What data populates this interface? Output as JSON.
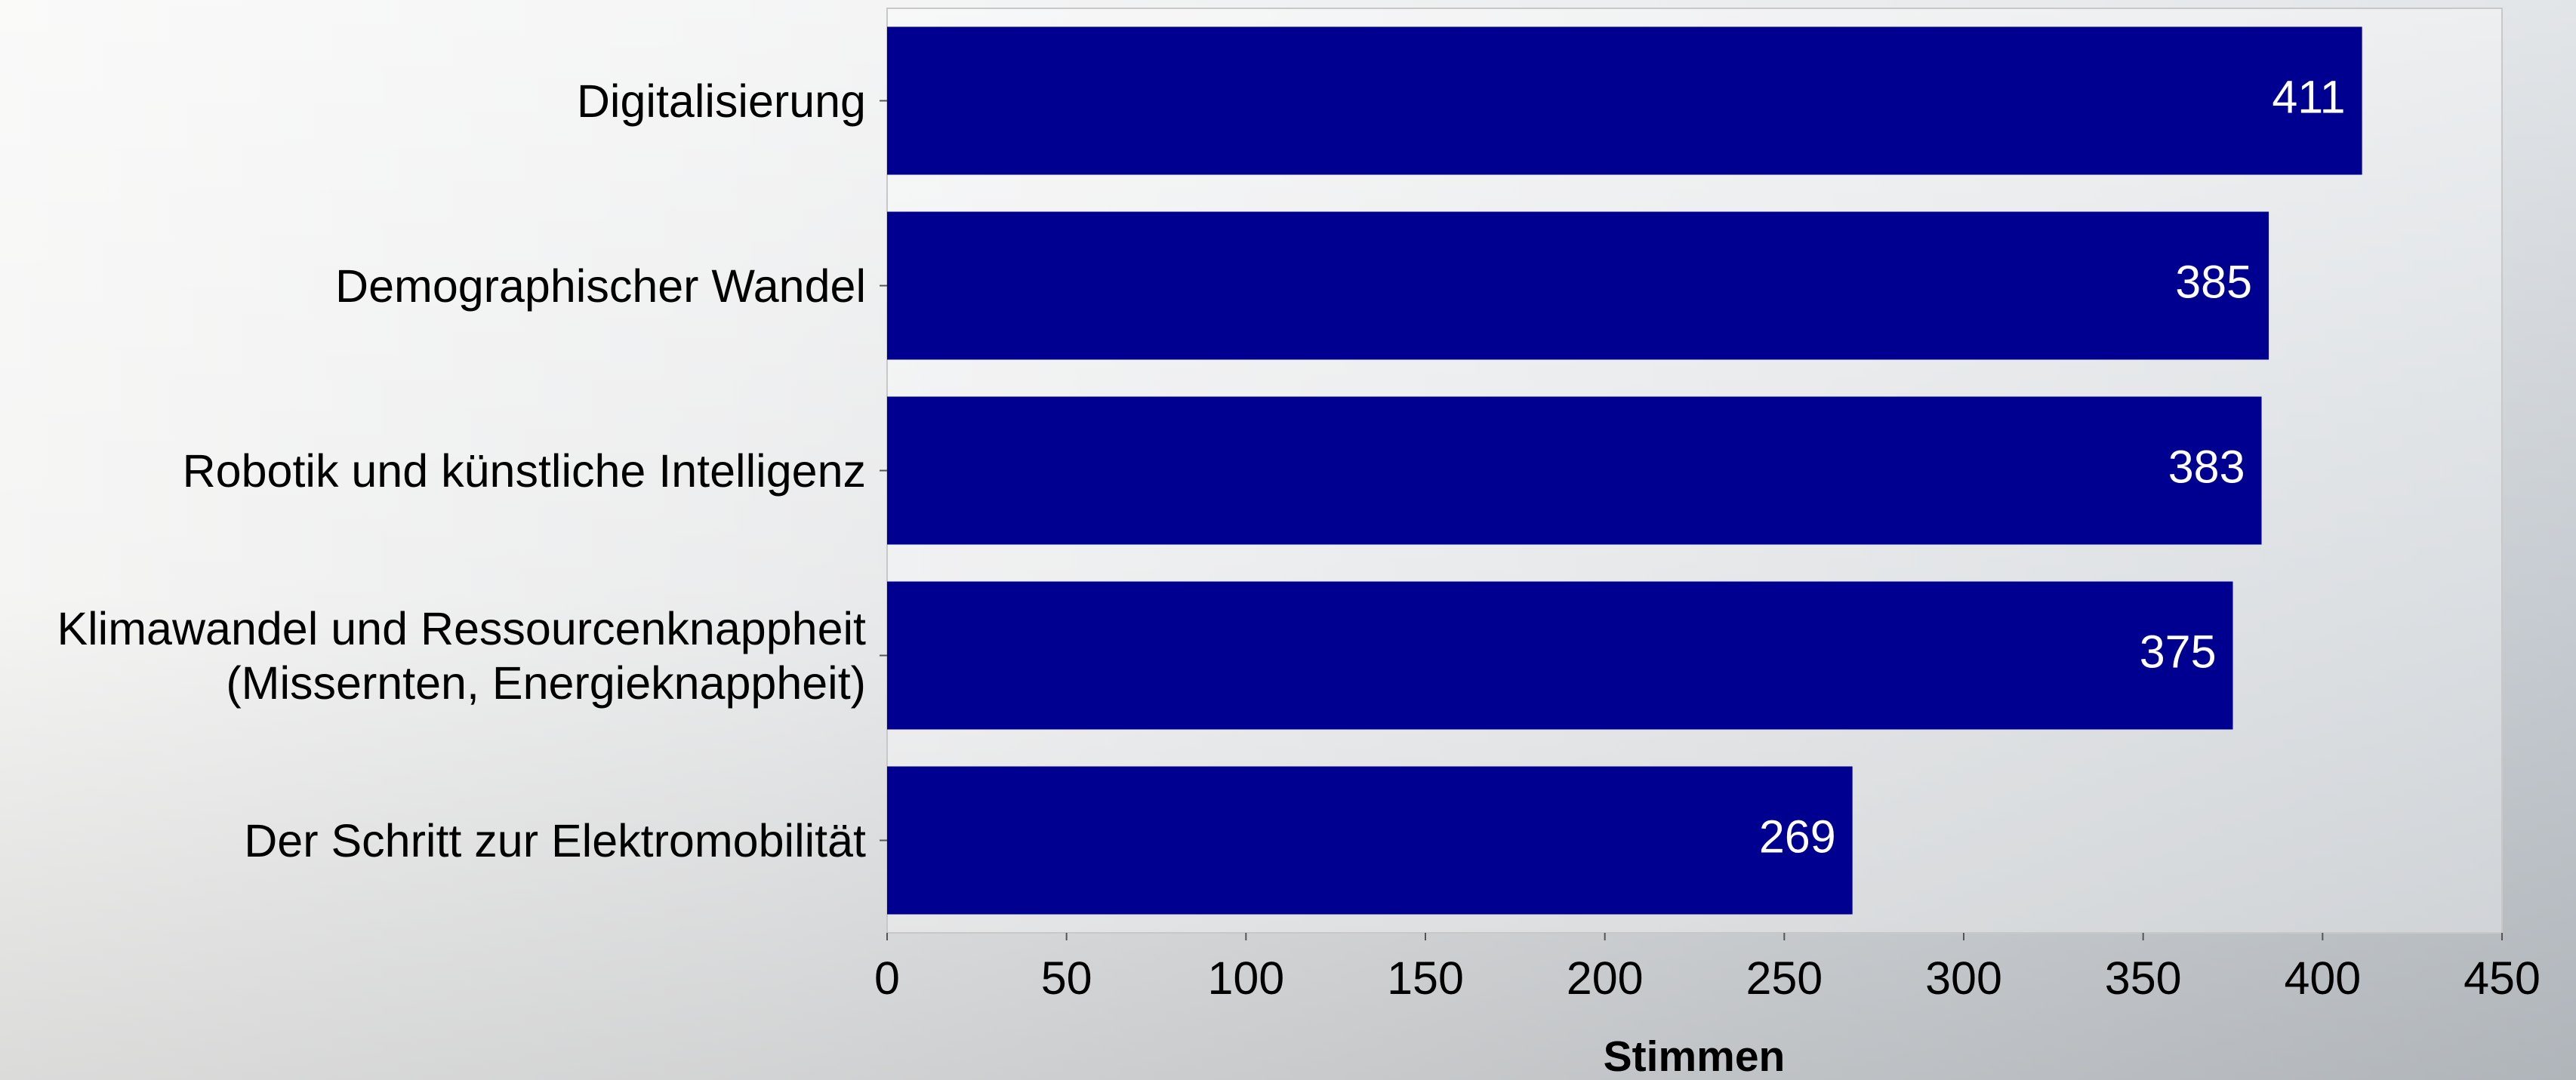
{
  "chart_data": {
    "type": "barh",
    "categories": [
      "Digitalisierung",
      "Demographischer Wandel",
      "Robotik und künstliche Intelligenz",
      "Klimawandel und Ressourcenknappheit\n(Missernten, Energieknappheit)",
      "Der Schritt zur Elektromobilität"
    ],
    "values": [
      411,
      385,
      383,
      375,
      269
    ],
    "color": "#000090",
    "x_label": "Stimmen",
    "xlim": [
      0,
      450
    ],
    "xticks": [
      0,
      50,
      100,
      150,
      200,
      250,
      300,
      350,
      400,
      450
    ]
  }
}
